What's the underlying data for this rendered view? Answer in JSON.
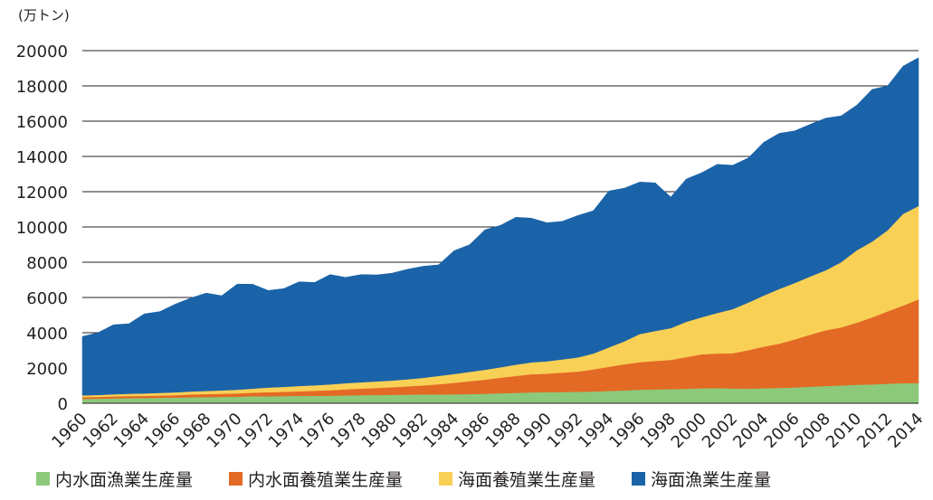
{
  "chart_data": {
    "type": "area",
    "stacked": true,
    "unit_label": "(万トン)",
    "ylim": [
      0,
      20000
    ],
    "yticks": [
      0,
      2000,
      4000,
      6000,
      8000,
      10000,
      12000,
      14000,
      16000,
      18000,
      20000
    ],
    "xticks": [
      "1960",
      "1962",
      "1964",
      "1966",
      "1968",
      "1970",
      "1972",
      "1974",
      "1976",
      "1978",
      "1980",
      "1982",
      "1984",
      "1986",
      "1988",
      "1990",
      "1992",
      "1994",
      "1996",
      "1998",
      "2000",
      "2002",
      "2004",
      "2006",
      "2008",
      "2010",
      "2012",
      "2014"
    ],
    "grid": "horizontal",
    "legend_position": "bottom",
    "x": [
      1960,
      1961,
      1962,
      1963,
      1964,
      1965,
      1966,
      1967,
      1968,
      1969,
      1970,
      1971,
      1972,
      1973,
      1974,
      1975,
      1976,
      1977,
      1978,
      1979,
      1980,
      1981,
      1982,
      1983,
      1984,
      1985,
      1986,
      1987,
      1988,
      1989,
      1990,
      1991,
      1992,
      1993,
      1994,
      1995,
      1996,
      1997,
      1998,
      1999,
      2000,
      2001,
      2002,
      2003,
      2004,
      2005,
      2006,
      2007,
      2008,
      2009,
      2010,
      2011,
      2012,
      2013,
      2014
    ],
    "series": [
      {
        "name": "内水面漁業生産量",
        "color": "#8cc97a",
        "values": [
          250,
          260,
          280,
          290,
          300,
          310,
          320,
          340,
          350,
          360,
          370,
          400,
          400,
          410,
          420,
          420,
          430,
          450,
          460,
          470,
          480,
          490,
          500,
          500,
          510,
          520,
          540,
          570,
          590,
          620,
          630,
          640,
          650,
          670,
          700,
          730,
          770,
          790,
          800,
          820,
          850,
          860,
          840,
          830,
          850,
          870,
          900,
          940,
          980,
          1010,
          1050,
          1070,
          1110,
          1140,
          1150
        ]
      },
      {
        "name": "内水面養殖業生産量",
        "color": "#e36a24",
        "values": [
          100,
          100,
          110,
          120,
          120,
          130,
          140,
          160,
          170,
          180,
          190,
          200,
          230,
          240,
          260,
          290,
          310,
          340,
          370,
          400,
          430,
          470,
          510,
          580,
          650,
          730,
          800,
          880,
          960,
          1030,
          1050,
          1100,
          1150,
          1250,
          1370,
          1480,
          1560,
          1610,
          1660,
          1800,
          1930,
          1960,
          2000,
          2180,
          2360,
          2510,
          2720,
          2950,
          3160,
          3290,
          3520,
          3800,
          4100,
          4400,
          4740
        ]
      },
      {
        "name": "海面養殖業生産量",
        "color": "#f9d056",
        "values": [
          100,
          110,
          120,
          130,
          140,
          150,
          160,
          170,
          180,
          190,
          210,
          230,
          260,
          280,
          300,
          310,
          330,
          350,
          360,
          370,
          380,
          400,
          430,
          470,
          500,
          530,
          560,
          590,
          640,
          670,
          700,
          750,
          800,
          900,
          1100,
          1300,
          1600,
          1700,
          1800,
          2000,
          2100,
          2300,
          2500,
          2700,
          2900,
          3100,
          3200,
          3300,
          3400,
          3700,
          4100,
          4300,
          4600,
          5200,
          5300
        ]
      },
      {
        "name": "海面漁業生産量",
        "color": "#1b63a8",
        "values": [
          3340,
          3530,
          3940,
          3970,
          4510,
          4610,
          5000,
          5300,
          5550,
          5370,
          5990,
          5920,
          5510,
          5570,
          5910,
          5830,
          6230,
          6000,
          6110,
          6040,
          6090,
          6240,
          6330,
          6300,
          6990,
          7210,
          7940,
          8050,
          8360,
          8180,
          7860,
          7830,
          8050,
          8100,
          8870,
          8690,
          8620,
          8400,
          7440,
          8100,
          8200,
          8430,
          8160,
          8200,
          8690,
          8830,
          8630,
          8630,
          8630,
          8300,
          8230,
          8630,
          8190,
          8380,
          8410
        ]
      }
    ]
  }
}
